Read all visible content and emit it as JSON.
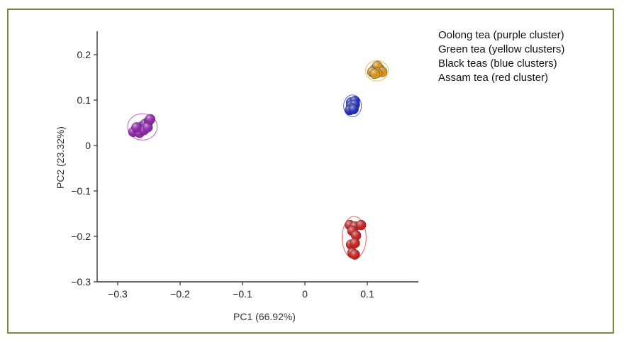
{
  "chart_data": {
    "type": "scatter",
    "title": "",
    "xlabel": "PC1 (66.92%)",
    "ylabel": "PC2 (23.32%)",
    "xlim": [
      -0.33,
      0.18
    ],
    "ylim": [
      -0.3,
      0.25
    ],
    "xticks": [
      -0.3,
      -0.2,
      -0.1,
      0,
      0.1
    ],
    "xtick_labels": [
      "−0.3",
      "−0.2",
      "−0.1",
      "0",
      "0.1"
    ],
    "yticks": [
      0.2,
      0.1,
      0,
      -0.1,
      -0.2,
      -0.3
    ],
    "ytick_labels": [
      "0.2",
      "0.1",
      "0",
      "−0.1",
      "−0.2",
      "−0.3"
    ],
    "grid": false,
    "legend_position": "top-right",
    "legend": [
      "Oolong tea (purple cluster)",
      "Green tea (yellow clusters)",
      "Black teas (blue clusters)",
      "Assam tea (red cluster)"
    ],
    "series": [
      {
        "color": "#a020c0",
        "points": [
          [
            -0.275,
            0.03
          ],
          [
            -0.268,
            0.036
          ],
          [
            -0.262,
            0.042
          ],
          [
            -0.256,
            0.048
          ],
          [
            -0.25,
            0.054
          ],
          [
            -0.265,
            0.028
          ],
          [
            -0.258,
            0.034
          ],
          [
            -0.252,
            0.04
          ],
          [
            -0.248,
            0.058
          ],
          [
            -0.27,
            0.04
          ]
        ]
      },
      {
        "color": "#f0a010",
        "points": [
          [
            0.112,
            0.168
          ],
          [
            0.12,
            0.168
          ],
          [
            0.116,
            0.175
          ],
          [
            0.108,
            0.162
          ],
          [
            0.124,
            0.162
          ],
          [
            0.116,
            0.16
          ],
          [
            0.112,
            0.158
          ]
        ]
      },
      {
        "color": "#1a2ad8",
        "points": [
          [
            0.074,
            0.095
          ],
          [
            0.08,
            0.098
          ],
          [
            0.074,
            0.088
          ],
          [
            0.08,
            0.09
          ],
          [
            0.076,
            0.082
          ],
          [
            0.072,
            0.078
          ],
          [
            0.078,
            0.08
          ]
        ]
      },
      {
        "color": "#e01818",
        "points": [
          [
            0.072,
            -0.175
          ],
          [
            0.08,
            -0.178
          ],
          [
            0.09,
            -0.175
          ],
          [
            0.076,
            -0.188
          ],
          [
            0.082,
            -0.198
          ],
          [
            0.074,
            -0.218
          ],
          [
            0.08,
            -0.215
          ],
          [
            0.076,
            -0.236
          ],
          [
            0.08,
            -0.24
          ]
        ]
      }
    ]
  }
}
